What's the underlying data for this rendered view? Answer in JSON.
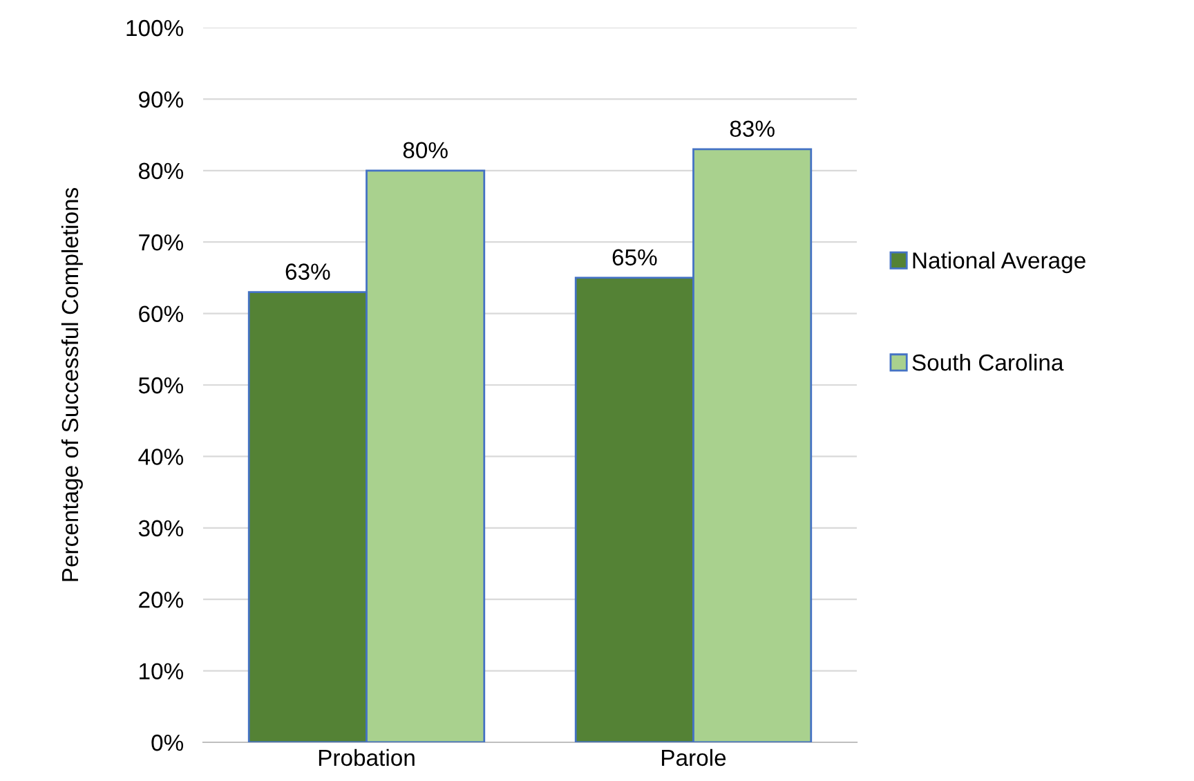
{
  "chart_data": {
    "type": "bar",
    "ylabel": "Percentage of Successful Completions",
    "categories": [
      "Probation",
      "Parole"
    ],
    "series": [
      {
        "name": "National Average",
        "color": "#548235",
        "values": [
          63,
          65
        ],
        "value_labels": [
          "63%",
          "65%"
        ]
      },
      {
        "name": "South Carolina",
        "color": "#a9d18e",
        "values": [
          80,
          83
        ],
        "value_labels": [
          "80%",
          "83%"
        ]
      }
    ],
    "ylim": [
      0,
      100
    ],
    "yticks": [
      {
        "value": 0,
        "label": "0%"
      },
      {
        "value": 10,
        "label": "10%"
      },
      {
        "value": 20,
        "label": "20%"
      },
      {
        "value": 30,
        "label": "30%"
      },
      {
        "value": 40,
        "label": "40%"
      },
      {
        "value": 50,
        "label": "50%"
      },
      {
        "value": 60,
        "label": "60%"
      },
      {
        "value": 70,
        "label": "70%"
      },
      {
        "value": 80,
        "label": "80%"
      },
      {
        "value": 90,
        "label": "90%"
      },
      {
        "value": 100,
        "label": "100%"
      }
    ],
    "grid": "y",
    "legend": "right"
  }
}
